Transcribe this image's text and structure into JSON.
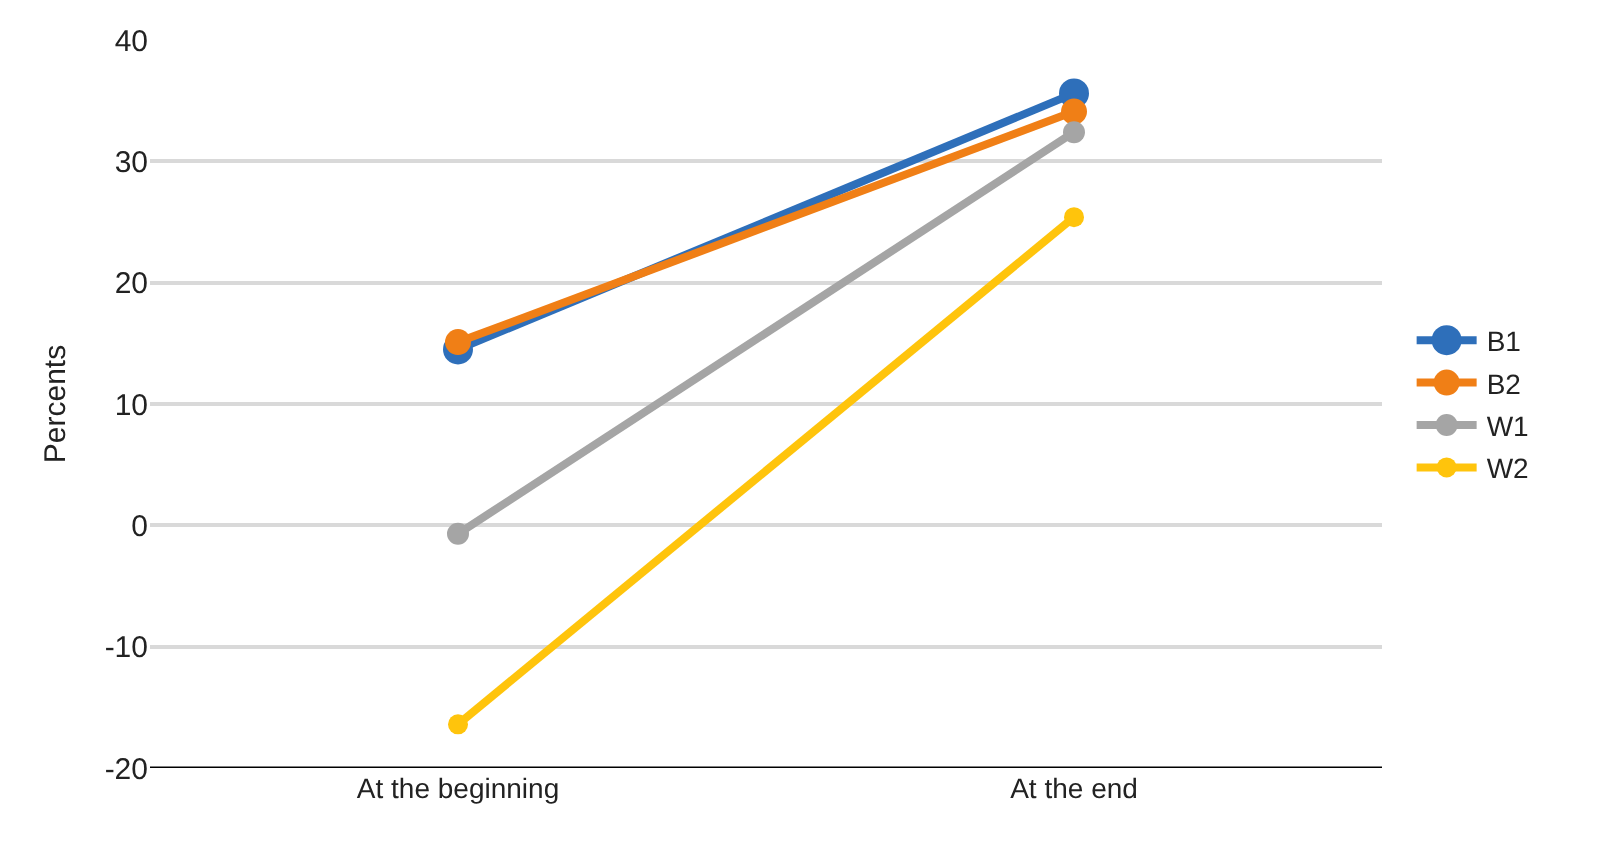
{
  "chart_data": {
    "type": "line",
    "ylabel": "Percents",
    "categories": [
      "At the beginning",
      "At the end"
    ],
    "series": [
      {
        "name": "B1",
        "color": "#2e6fba",
        "values": [
          14.5,
          35.6
        ]
      },
      {
        "name": "B2",
        "color": "#f07f16",
        "values": [
          15.1,
          34.1
        ]
      },
      {
        "name": "W1",
        "color": "#a5a5a5",
        "values": [
          -0.7,
          32.4
        ]
      },
      {
        "name": "W2",
        "color": "#ffc40c",
        "values": [
          -16.4,
          25.4
        ]
      }
    ],
    "ylim": [
      -20,
      40
    ],
    "yticks": [
      -20,
      -10,
      0,
      10,
      20,
      30,
      40
    ],
    "grid": "y",
    "legend": "right",
    "marker": "circle",
    "line_style": "solid"
  }
}
